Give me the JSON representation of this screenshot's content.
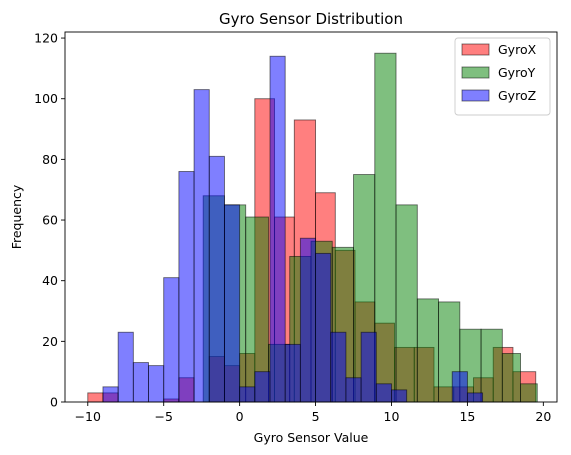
{
  "chart_data": {
    "type": "histogram",
    "title": "Gyro Sensor Distribution",
    "xlabel": "Gyro Sensor Value",
    "ylabel": "Frequency",
    "xlim": [
      -11.5,
      20.9
    ],
    "ylim": [
      0,
      122
    ],
    "xticks": [
      -10,
      -5,
      0,
      5,
      10,
      15,
      20
    ],
    "yticks": [
      0,
      20,
      40,
      60,
      80,
      100,
      120
    ],
    "grid": false,
    "legend_position": "top-right",
    "series": [
      {
        "name": "GyroX",
        "color": "#ff0000",
        "bins": [
          [
            -10.0,
            -9.0,
            3
          ],
          [
            -9.0,
            -8.0,
            3
          ],
          [
            -5.0,
            -4.0,
            1
          ],
          [
            -4.0,
            -3.0,
            8
          ],
          [
            -2.0,
            -1.0,
            15
          ],
          [
            -1.0,
            0.0,
            12
          ],
          [
            0.0,
            1.0,
            16
          ],
          [
            1.0,
            2.3,
            100
          ],
          [
            2.3,
            3.6,
            61
          ],
          [
            3.6,
            5.0,
            93
          ],
          [
            5.0,
            6.3,
            69
          ],
          [
            6.3,
            7.6,
            50
          ],
          [
            7.6,
            8.9,
            33
          ],
          [
            8.9,
            10.2,
            26
          ],
          [
            10.2,
            11.5,
            18
          ],
          [
            11.5,
            12.8,
            18
          ],
          [
            12.8,
            14.1,
            5
          ],
          [
            14.1,
            15.4,
            5
          ],
          [
            15.4,
            16.7,
            8
          ],
          [
            16.7,
            18.0,
            18
          ],
          [
            18.0,
            19.5,
            10
          ]
        ]
      },
      {
        "name": "GyroY",
        "color": "#008000",
        "bins": [
          [
            -2.4,
            -1.0,
            68
          ],
          [
            -1.0,
            0.4,
            65
          ],
          [
            0.4,
            1.9,
            61
          ],
          [
            1.9,
            3.3,
            19
          ],
          [
            3.3,
            4.7,
            48
          ],
          [
            4.7,
            6.1,
            53
          ],
          [
            6.1,
            7.5,
            51
          ],
          [
            7.5,
            8.9,
            75
          ],
          [
            8.9,
            10.3,
            115
          ],
          [
            10.3,
            11.7,
            65
          ],
          [
            11.7,
            13.1,
            34
          ],
          [
            13.1,
            14.5,
            33
          ],
          [
            14.5,
            15.9,
            24
          ],
          [
            15.9,
            17.3,
            24
          ],
          [
            17.3,
            18.5,
            16
          ],
          [
            18.5,
            19.6,
            6
          ]
        ]
      },
      {
        "name": "GyroZ",
        "color": "#0000ff",
        "bins": [
          [
            -9.0,
            -8.0,
            5
          ],
          [
            -8.0,
            -7.0,
            23
          ],
          [
            -7.0,
            -6.0,
            13
          ],
          [
            -6.0,
            -5.0,
            12
          ],
          [
            -5.0,
            -4.0,
            41
          ],
          [
            -4.0,
            -3.0,
            76
          ],
          [
            -3.0,
            -2.0,
            103
          ],
          [
            -2.0,
            -1.0,
            81
          ],
          [
            -1.0,
            0.0,
            65
          ],
          [
            0.0,
            1.0,
            5
          ],
          [
            1.0,
            2.0,
            10
          ],
          [
            2.0,
            3.0,
            114
          ],
          [
            3.0,
            4.0,
            19
          ],
          [
            4.0,
            5.0,
            54
          ],
          [
            5.0,
            6.0,
            49
          ],
          [
            6.0,
            7.0,
            23
          ],
          [
            7.0,
            8.0,
            8
          ],
          [
            8.0,
            9.0,
            23
          ],
          [
            9.0,
            10.0,
            6
          ],
          [
            10.0,
            11.0,
            4
          ],
          [
            14.0,
            15.0,
            10
          ],
          [
            15.0,
            16.0,
            3
          ]
        ]
      }
    ]
  }
}
